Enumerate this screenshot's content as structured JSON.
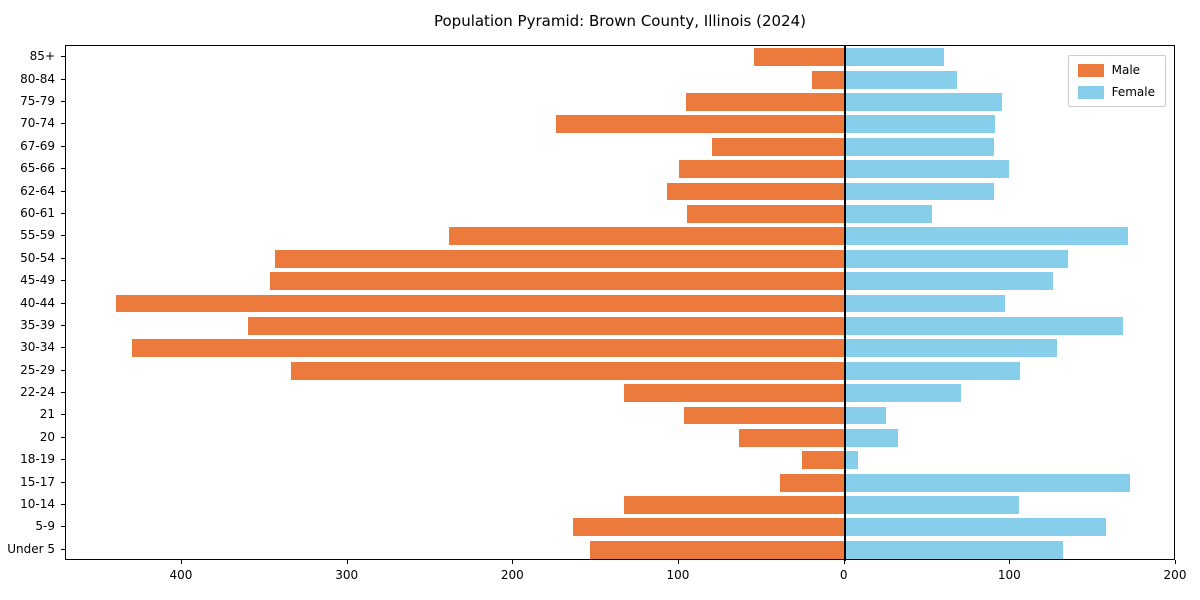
{
  "title": "Population Pyramid: Brown County, Illinois (2024)",
  "legend": {
    "male_label": "Male",
    "female_label": "Female",
    "position": "upper right"
  },
  "colors": {
    "male": "#ec7a3d",
    "female": "#87ceeb",
    "axis": "#000000",
    "legend_border": "#cccccc",
    "background": "#ffffff"
  },
  "chart_data": {
    "type": "bar",
    "subtype": "population-pyramid-diverging-horizontal",
    "title": "Population Pyramid: Brown County, Illinois (2024)",
    "xlabel": "",
    "ylabel": "",
    "grid": false,
    "zero_line": true,
    "legend_position": "upper right",
    "xlim": [
      -470,
      200
    ],
    "x_tick_values": [
      -400,
      -300,
      -200,
      -100,
      0,
      100,
      200
    ],
    "x_tick_labels": [
      "400",
      "300",
      "200",
      "100",
      "0",
      "100",
      "200"
    ],
    "categories_top_to_bottom": [
      "85+",
      "80-84",
      "75-79",
      "70-74",
      "67-69",
      "65-66",
      "62-64",
      "60-61",
      "55-59",
      "50-54",
      "45-49",
      "40-44",
      "35-39",
      "30-34",
      "25-29",
      "22-24",
      "21",
      "20",
      "18-19",
      "15-17",
      "10-14",
      "5-9",
      "Under 5"
    ],
    "series": [
      {
        "name": "Male",
        "side": "left",
        "color": "#ec7a3d",
        "values": [
          55,
          20,
          96,
          174,
          80,
          100,
          107,
          95,
          239,
          344,
          347,
          440,
          360,
          430,
          334,
          133,
          97,
          64,
          26,
          39,
          133,
          164,
          154
        ]
      },
      {
        "name": "Female",
        "side": "right",
        "color": "#87ceeb",
        "values": [
          60,
          68,
          95,
          91,
          90,
          99,
          90,
          53,
          171,
          135,
          126,
          97,
          168,
          128,
          106,
          70,
          25,
          32,
          8,
          172,
          105,
          158,
          132
        ]
      }
    ]
  }
}
